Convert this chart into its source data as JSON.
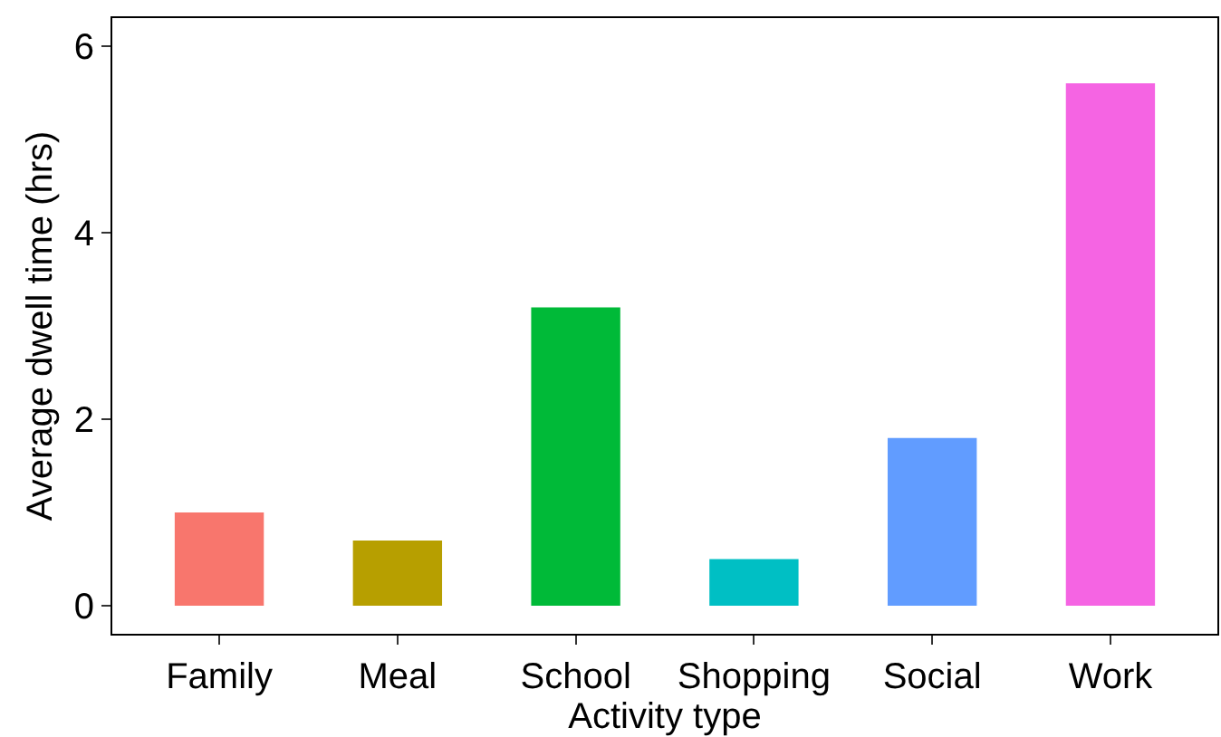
{
  "chart_data": {
    "type": "bar",
    "xlabel": "Activity type",
    "ylabel": "Average dwell time (hrs)",
    "categories": [
      "Family",
      "Meal",
      "School",
      "Shopping",
      "Social",
      "Work"
    ],
    "values": [
      1.0,
      0.7,
      3.2,
      0.5,
      1.8,
      5.6
    ],
    "colors": [
      "#f8766d",
      "#b79f00",
      "#00ba38",
      "#00bfc4",
      "#619cff",
      "#f564e3"
    ],
    "ylim": [
      -0.3,
      6.3
    ],
    "yticks": [
      0,
      2,
      4,
      6
    ]
  }
}
